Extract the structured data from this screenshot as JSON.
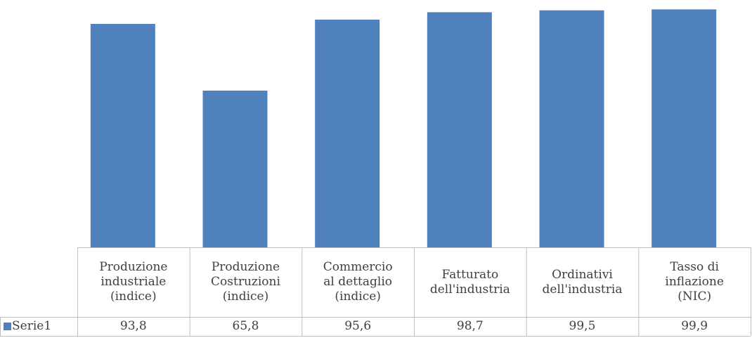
{
  "chart_data": {
    "type": "bar",
    "categories": [
      "Produzione\nindustriale\n(indice)",
      "Produzione\nCostruzioni\n(indice)",
      "Commercio\nal dettaglio\n(indice)",
      "Fatturato\ndell'industria",
      "Ordinativi\ndell'industria",
      "Tasso di\ninflazione\n(NIC)"
    ],
    "series": [
      {
        "name": "Serie1",
        "color": "#4f81bd",
        "values": [
          93.8,
          65.8,
          95.6,
          98.7,
          99.5,
          99.9
        ],
        "value_labels": [
          "93,8",
          "65,8",
          "95,6",
          "98,7",
          "99,5",
          "99,9"
        ]
      }
    ],
    "ylim": [
      0,
      100
    ],
    "data_table": true
  }
}
